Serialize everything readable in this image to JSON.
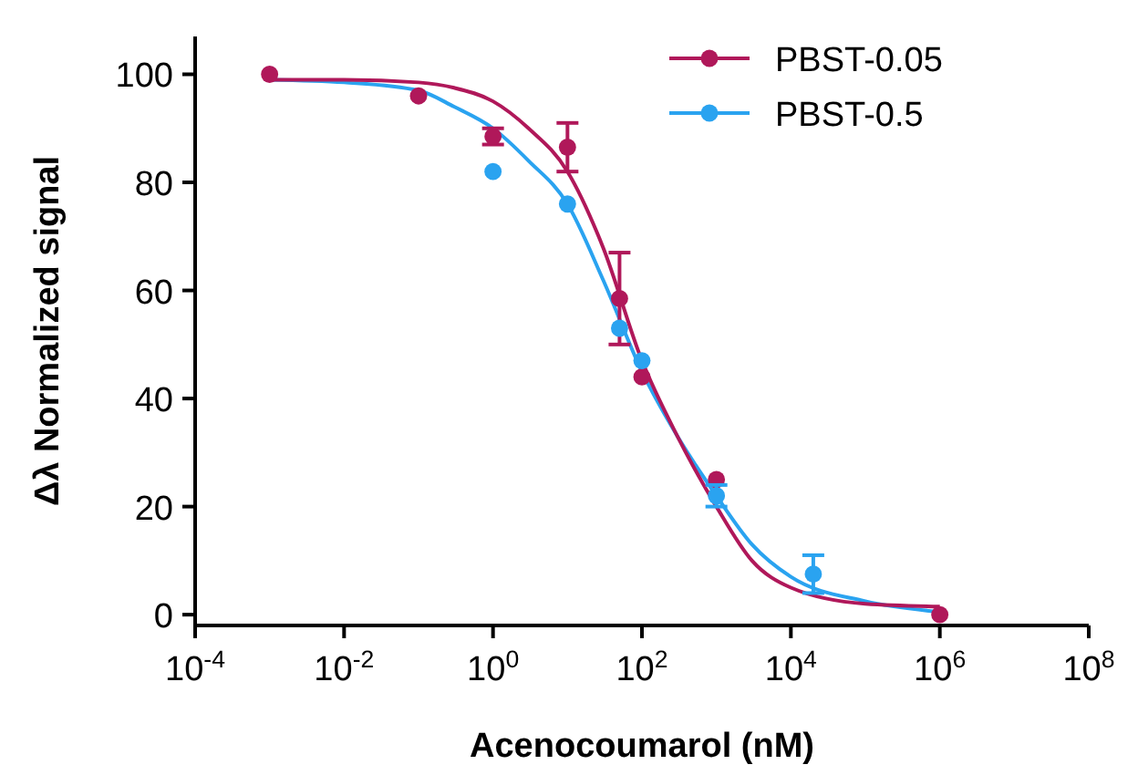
{
  "chart_data": {
    "type": "scatter",
    "xlabel": "Acenocoumarol (nM)",
    "ylabel": "Δλ Normalized signal",
    "log": "x",
    "grid": false,
    "legend": "top right",
    "marker": "circle",
    "xlim": [
      0.0001,
      100000000
    ],
    "ylim": [
      -2,
      107
    ],
    "xticks": [
      {
        "value": 0.0001,
        "label": "10$^{-4}$"
      },
      {
        "value": 0.01,
        "label": "10$^{-2}$"
      },
      {
        "value": 1,
        "label": "10$^{0}$"
      },
      {
        "value": 100,
        "label": "10$^{2}$"
      },
      {
        "value": 10000,
        "label": "10$^{4}$"
      },
      {
        "value": 1000000,
        "label": "10$^{6}$"
      },
      {
        "value": 100000000,
        "label": "10$^{8}$"
      }
    ],
    "yticks": [
      0,
      20,
      40,
      60,
      80,
      100
    ],
    "series": [
      {
        "type": "line",
        "marker": "none",
        "color": "#2aa3f0",
        "x": [
          0.001,
          0.01,
          0.1,
          0.3,
          1,
          3,
          10,
          30,
          100,
          300,
          1000,
          3000,
          10000,
          100000,
          1000000
        ],
        "values": [
          99,
          98.5,
          97,
          94,
          90,
          84,
          76,
          62,
          45,
          33,
          22,
          13,
          7,
          2.5,
          0.5
        ]
      },
      {
        "type": "line",
        "marker": "none",
        "color": "#b0185a",
        "x": [
          0.001,
          0.01,
          0.1,
          0.3,
          1,
          3,
          10,
          30,
          100,
          300,
          1000,
          3000,
          10000,
          100000,
          1000000
        ],
        "values": [
          99,
          99,
          98.5,
          97.5,
          95,
          90,
          82,
          68,
          47,
          33,
          20,
          10,
          5,
          2,
          1.5
        ]
      },
      {
        "name": "PBST-0.05",
        "color": "#b0185a",
        "x": [
          0.001,
          0.1,
          1,
          10,
          50,
          100,
          1000,
          1000000
        ],
        "values": [
          100,
          96,
          88.5,
          86.5,
          58.5,
          44,
          25,
          0
        ],
        "errors": [
          null,
          null,
          1.5,
          4.5,
          [
            50,
            67
          ],
          null,
          null,
          null
        ]
      },
      {
        "name": "PBST-0.5",
        "color": "#2aa3f0",
        "x": [
          1,
          10,
          50,
          100,
          1000,
          20000
        ],
        "values": [
          82,
          76,
          53,
          47,
          22,
          7.5
        ],
        "errors": [
          null,
          null,
          null,
          null,
          [
            20,
            24
          ],
          [
            4,
            11
          ]
        ]
      }
    ]
  }
}
